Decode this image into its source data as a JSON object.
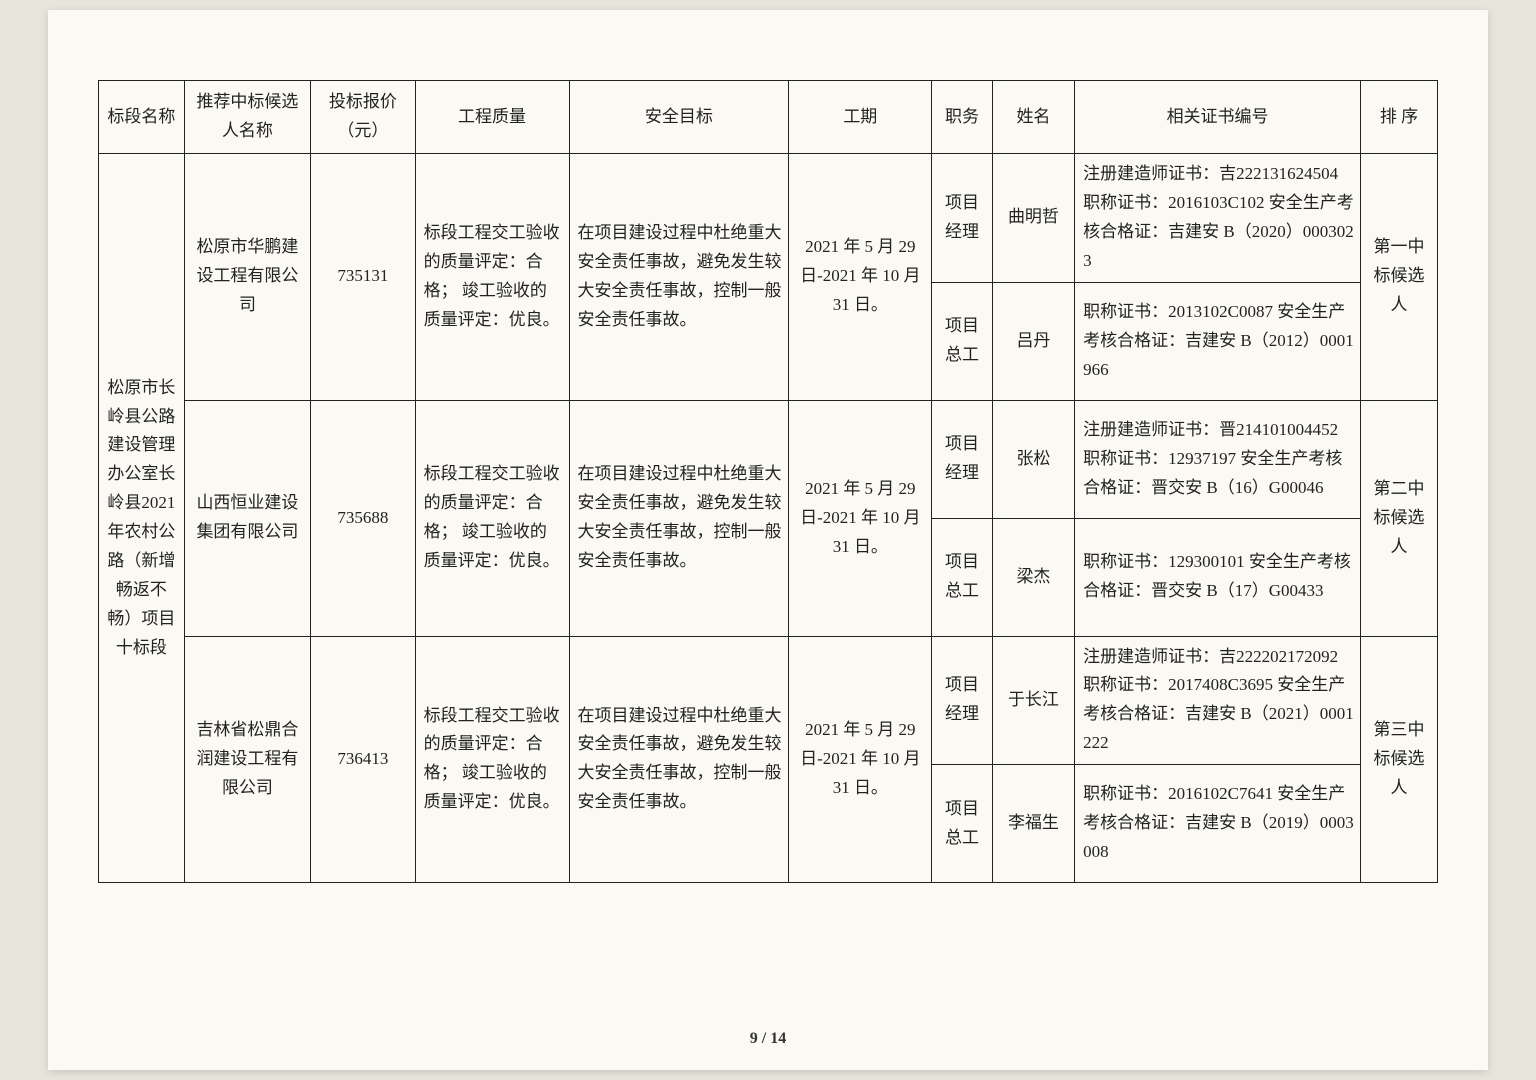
{
  "page": {
    "current": "9",
    "total": "14"
  },
  "headers": {
    "section": "标段名称",
    "candidate": "推荐中标候选人名称",
    "price": "投标报价（元）",
    "quality": "工程质量",
    "safety": "安全目标",
    "period": "工期",
    "role": "职务",
    "name": "姓名",
    "cert": "相关证书编号",
    "rank": "排 序"
  },
  "section_name": "松原市长岭县公路建设管理办公室长岭县2021年农村公路（新增畅返不畅）项目十标段",
  "bidders": [
    {
      "candidate": "松原市华鹏建设工程有限公司",
      "price": "735131",
      "quality": "标段工程交工验收的质量评定：合格；\n竣工验收的质量评定：优良。",
      "safety": "在项目建设过程中杜绝重大安全责任事故，避免发生较大安全责任事故，控制一般安全责任事故。",
      "period": "2021 年 5 月 29 日-2021 年 10 月 31 日。",
      "rank": "第一中标候选人",
      "staff": [
        {
          "role": "项目经理",
          "name": "曲明哲",
          "cert": "注册建造师证书：吉222131624504\n职称证书：2016103C102\n安全生产考核合格证：吉建安 B（2020）0003023"
        },
        {
          "role": "项目总工",
          "name": "吕丹",
          "cert": "职称证书：2013102C0087\n安全生产考核合格证：吉建安 B（2012）0001966"
        }
      ]
    },
    {
      "candidate": "山西恒业建设集团有限公司",
      "price": "735688",
      "quality": "标段工程交工验收的质量评定：合格；\n竣工验收的质量评定：优良。",
      "safety": "在项目建设过程中杜绝重大安全责任事故，避免发生较大安全责任事故，控制一般安全责任事故。",
      "period": "2021 年 5 月 29 日-2021 年 10 月 31 日。",
      "rank": "第二中标候选人",
      "staff": [
        {
          "role": "项目经理",
          "name": "张松",
          "cert": "注册建造师证书：晋214101004452\n职称证书：12937197\n安全生产考核合格证：晋交安 B（16）G00046"
        },
        {
          "role": "项目总工",
          "name": "梁杰",
          "cert": "职称证书：129300101\n安全生产考核合格证：晋交安 B（17）G00433"
        }
      ]
    },
    {
      "candidate": "吉林省松鼎合润建设工程有限公司",
      "price": "736413",
      "quality": "标段工程交工验收的质量评定：合格；\n竣工验收的质量评定：优良。",
      "safety": "在项目建设过程中杜绝重大安全责任事故，避免发生较大安全责任事故，控制一般安全责任事故。",
      "period": "2021 年 5 月 29 日-2021 年 10 月 31 日。",
      "rank": "第三中标候选人",
      "staff": [
        {
          "role": "项目经理",
          "name": "于长江",
          "cert": "注册建造师证书：吉222202172092\n职称证书：2017408C3695\n安全生产考核合格证：吉建安 B（2021）0001222"
        },
        {
          "role": "项目总工",
          "name": "李福生",
          "cert": "职称证书：2016102C7641\n安全生产考核合格证：吉建安 B（2019）0003008"
        }
      ]
    }
  ]
}
